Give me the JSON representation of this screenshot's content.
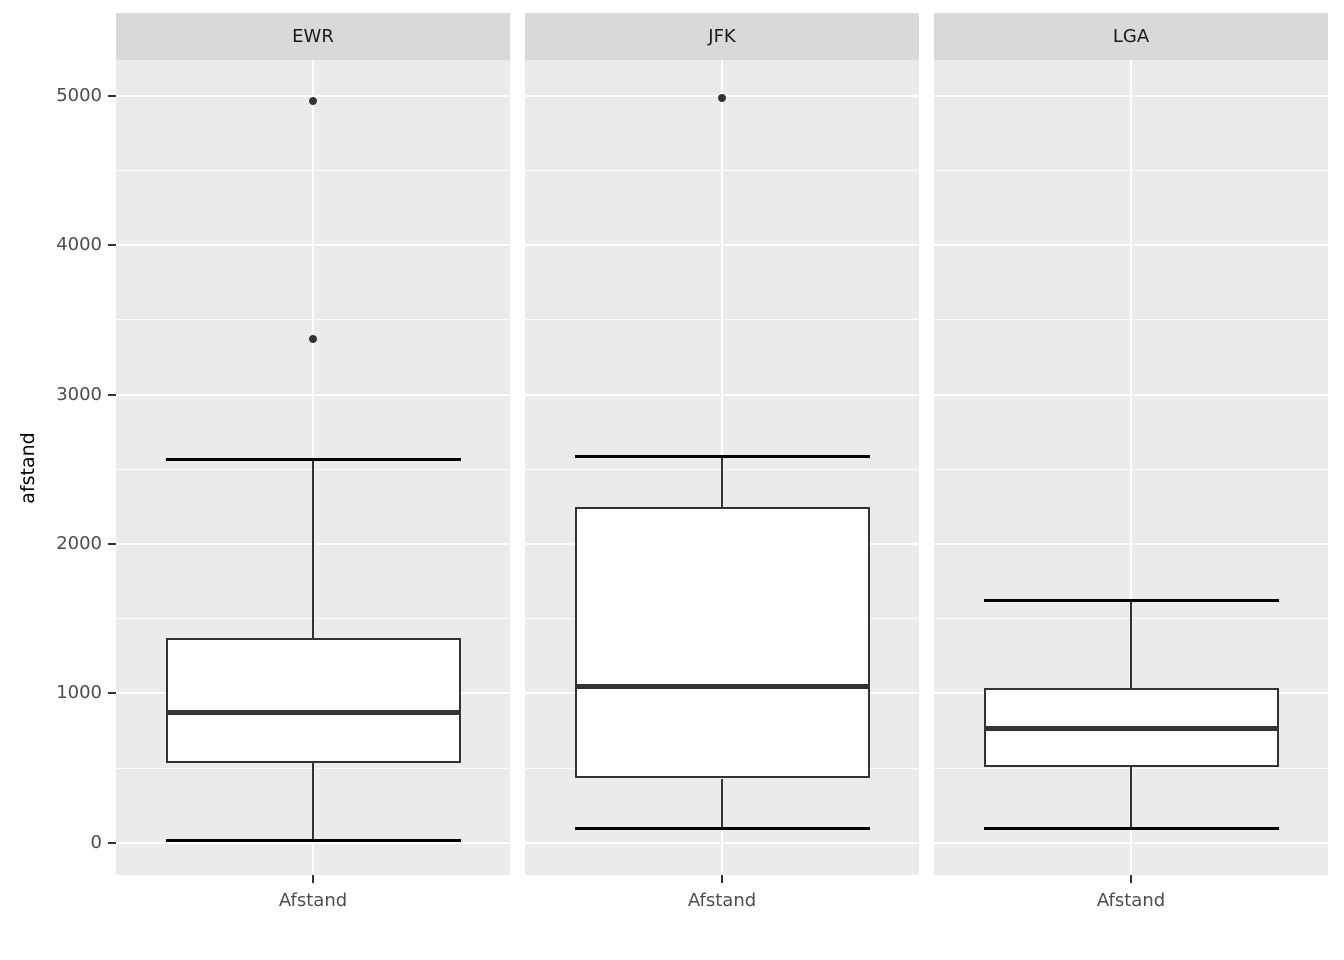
{
  "figure_title": "",
  "axes": {
    "y_title": "afstand",
    "y_tick_labels": [
      "0",
      "1000",
      "2000",
      "3000",
      "4000",
      "5000"
    ],
    "x_tick_label": "Afstand"
  },
  "facet_strip_labels": [
    "EWR",
    "JFK",
    "LGA"
  ],
  "colors": {
    "background": "#ffffff",
    "panel_background": "#ebebeb",
    "strip_background": "#d9d9d9",
    "gridline": "#ffffff",
    "box_stroke": "#333333",
    "whisker_cap": "#000000",
    "outlier": "#333333",
    "tick_text": "#4d4d4d",
    "strip_text": "#1a1a1a",
    "axis_title_text": "#000000"
  },
  "chart_data": {
    "type": "boxplot",
    "title": "",
    "ylabel": "afstand",
    "xlabel": "",
    "x_category": "Afstand",
    "ylim": [
      -216,
      5240
    ],
    "y_major_ticks": [
      0,
      1000,
      2000,
      3000,
      4000,
      5000
    ],
    "y_minor_ticks": [
      500,
      1500,
      2500,
      3500,
      4500
    ],
    "grid": "white on grey panel, ggplot2 style",
    "legend_position": "none",
    "facets": [
      {
        "label": "EWR",
        "x_tick_label": "Afstand",
        "stats": {
          "whisker_low": 17,
          "q1": 533,
          "median": 872,
          "q3": 1372,
          "whisker_high": 2565
        },
        "outliers": [
          3370,
          4963
        ]
      },
      {
        "label": "JFK",
        "x_tick_label": "Afstand",
        "stats": {
          "whisker_low": 94,
          "q1": 430,
          "median": 1045,
          "q3": 2248,
          "whisker_high": 2586
        },
        "outliers": [
          4983
        ]
      },
      {
        "label": "LGA",
        "x_tick_label": "Afstand",
        "stats": {
          "whisker_low": 96,
          "q1": 505,
          "median": 765,
          "q3": 1035,
          "whisker_high": 1620
        },
        "outliers": []
      }
    ]
  }
}
